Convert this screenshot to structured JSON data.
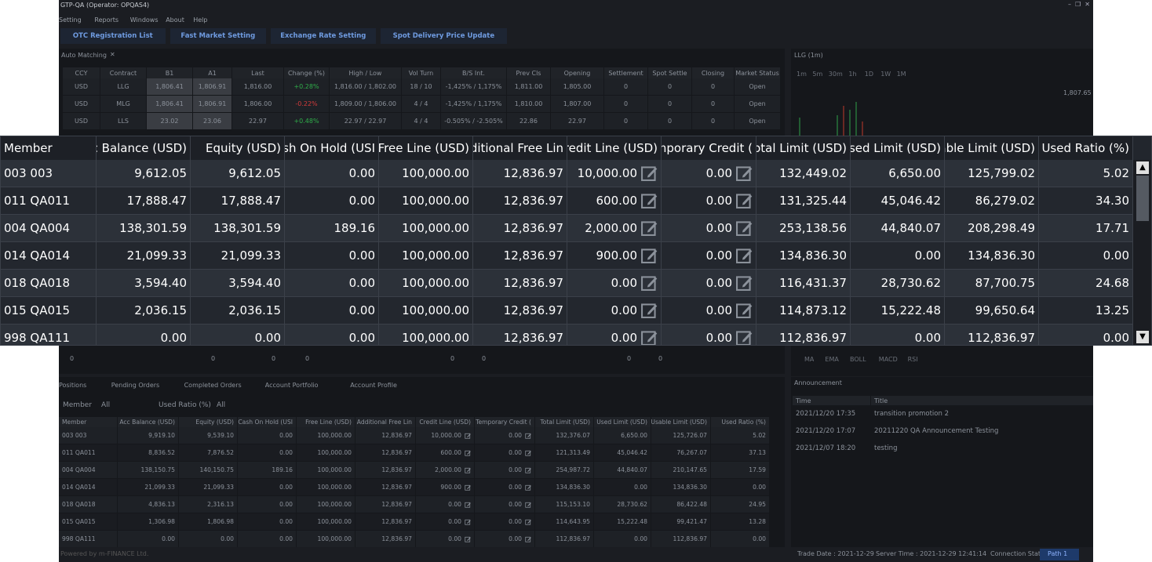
{
  "window": {
    "title": "GTP-QA (Operator: OPQAS4)",
    "menu": [
      "Setting",
      "Reports",
      "Windows",
      "About",
      "Help"
    ],
    "toolbar": [
      "OTC Registration List",
      "Fast Market Setting",
      "Exchange Rate Setting",
      "Spot Delivery Price Update"
    ]
  },
  "auto_matching": {
    "tab": "Auto Matching",
    "headers": [
      "CCY",
      "Contract",
      "B1",
      "A1",
      "Last",
      "Change (%)",
      "High / Low",
      "Vol Turn",
      "B/S Int.",
      "Prev Cls",
      "Opening",
      "Settlement",
      "Spot Settle",
      "Closing",
      "Market Status"
    ],
    "rows": [
      [
        "USD",
        "LLG",
        "1,806.41",
        "1,806.91",
        "1,816.00",
        "+0.28%",
        "1,816.00 / 1,802.00",
        "18 / 10",
        "-1,425% / 1,175%",
        "1,811.00",
        "1,805.00",
        "0",
        "0",
        "0",
        "Open"
      ],
      [
        "USD",
        "MLG",
        "1,806.41",
        "1,806.91",
        "1,806.00",
        "-0.22%",
        "1,809.00 / 1,806.00",
        "4 / 4",
        "-1,425% / 1,175%",
        "1,810.00",
        "1,807.00",
        "0",
        "0",
        "0",
        "Open"
      ],
      [
        "USD",
        "LLS",
        "23.02",
        "23.06",
        "22.97",
        "+0.48%",
        "22.97 / 22.97",
        "4 / 4",
        "-0.505% / -2.505%",
        "22.86",
        "22.97",
        "0",
        "0",
        "0",
        "Open"
      ]
    ]
  },
  "chart_panel": {
    "tab": "LLG (1m)",
    "periods": [
      "1m",
      "5m",
      "30m",
      "1h",
      "1D",
      "1W",
      "1M"
    ],
    "price_label": "1,807.65",
    "indicators": [
      "MA",
      "EMA",
      "BOLL",
      "MACD",
      "RSI"
    ]
  },
  "depth_row": [
    "0",
    "0",
    "0",
    "0",
    "0",
    "0",
    "0",
    "0"
  ],
  "bottom_panel": {
    "tabs": [
      "Positions",
      "Pending Orders",
      "Completed Orders",
      "Account Portfolio",
      "Account Profile"
    ],
    "filters": {
      "member_label": "Member",
      "member_value": "All",
      "ratio_label": "Used Ratio (%)",
      "ratio_value": "All"
    },
    "headers": [
      "Member",
      "Acc Balance (USD)",
      "Equity (USD)",
      "Cash On Hold (USI",
      "Free Line (USD)",
      "Additional Free Lin",
      "Credit Line (USD)",
      "Temporary Credit (",
      "Total Limit (USD)",
      "Used Limit (USD)",
      "Usable Limit (USD)",
      "Used Ratio (%)"
    ],
    "rows": [
      [
        "003 003",
        "9,919.10",
        "9,539.10",
        "0.00",
        "100,000.00",
        "12,836.97",
        "10,000.00",
        "0.00",
        "132,376.07",
        "6,650.00",
        "125,726.07",
        "5.02"
      ],
      [
        "011 QA011",
        "8,836.52",
        "7,876.52",
        "0.00",
        "100,000.00",
        "12,836.97",
        "600.00",
        "0.00",
        "121,313.49",
        "45,046.42",
        "76,267.07",
        "37.13"
      ],
      [
        "004 QA004",
        "138,150.75",
        "140,150.75",
        "189.16",
        "100,000.00",
        "12,836.97",
        "2,000.00",
        "0.00",
        "254,987.72",
        "44,840.07",
        "210,147.65",
        "17.59"
      ],
      [
        "014 QA014",
        "21,099.33",
        "21,099.33",
        "0.00",
        "100,000.00",
        "12,836.97",
        "900.00",
        "0.00",
        "134,836.30",
        "0.00",
        "134,836.30",
        "0.00"
      ],
      [
        "018 QA018",
        "4,836.13",
        "2,316.13",
        "0.00",
        "100,000.00",
        "12,836.97",
        "0.00",
        "0.00",
        "115,153.10",
        "28,730.62",
        "86,422.48",
        "24.95"
      ],
      [
        "015 QA015",
        "1,306.98",
        "1,806.98",
        "0.00",
        "100,000.00",
        "12,836.97",
        "0.00",
        "0.00",
        "114,643.95",
        "15,222.48",
        "99,421.47",
        "13.28"
      ],
      [
        "998 QA111",
        "0.00",
        "0.00",
        "0.00",
        "100,000.00",
        "12,836.97",
        "0.00",
        "0.00",
        "112,836.97",
        "0.00",
        "112,836.97",
        "0.00"
      ]
    ]
  },
  "announcement": {
    "tab": "Announcement",
    "headers": [
      "Time",
      "Title"
    ],
    "rows": [
      [
        "2021/12/20 17:35",
        "transition  promotion 2"
      ],
      [
        "2021/12/20 17:07",
        "20211220 QA Announcement Testing"
      ],
      [
        "2021/12/07 18:20",
        "testing"
      ]
    ]
  },
  "status_bar": {
    "powered": "Powered by m-FINANCE Ltd.",
    "trade_date": "Trade Date : 2021-12-29",
    "server_time": "Server Time : 2021-12-29 12:41:14",
    "connection": "Connection Status",
    "path": "Path 1"
  },
  "zoom_table": {
    "headers": [
      "Member",
      "Acc Balance (USD)",
      "Equity (USD)",
      "Cash On Hold (USI",
      "Free Line (USD)",
      "Additional Free Lin",
      "Credit Line (USD)",
      "Temporary Credit (",
      "Total Limit (USD)",
      "Used Limit (USD)",
      "Usable Limit (USD)",
      "Used Ratio (%)"
    ],
    "rows": [
      [
        "003 003",
        "9,612.05",
        "9,612.05",
        "0.00",
        "100,000.00",
        "12,836.97",
        "10,000.00",
        "0.00",
        "132,449.02",
        "6,650.00",
        "125,799.02",
        "5.02"
      ],
      [
        "011 QA011",
        "17,888.47",
        "17,888.47",
        "0.00",
        "100,000.00",
        "12,836.97",
        "600.00",
        "0.00",
        "131,325.44",
        "45,046.42",
        "86,279.02",
        "34.30"
      ],
      [
        "004 QA004",
        "138,301.59",
        "138,301.59",
        "189.16",
        "100,000.00",
        "12,836.97",
        "2,000.00",
        "0.00",
        "253,138.56",
        "44,840.07",
        "208,298.49",
        "17.71"
      ],
      [
        "014 QA014",
        "21,099.33",
        "21,099.33",
        "0.00",
        "100,000.00",
        "12,836.97",
        "900.00",
        "0.00",
        "134,836.30",
        "0.00",
        "134,836.30",
        "0.00"
      ],
      [
        "018 QA018",
        "3,594.40",
        "3,594.40",
        "0.00",
        "100,000.00",
        "12,836.97",
        "0.00",
        "0.00",
        "116,431.37",
        "28,730.62",
        "87,700.75",
        "24.68"
      ],
      [
        "015 QA015",
        "2,036.15",
        "2,036.15",
        "0.00",
        "100,000.00",
        "12,836.97",
        "0.00",
        "0.00",
        "114,873.12",
        "15,222.48",
        "99,650.64",
        "13.25"
      ],
      [
        "998 QA111",
        "0.00",
        "0.00",
        "0.00",
        "100,000.00",
        "12,836.97",
        "0.00",
        "0.00",
        "112,836.97",
        "0.00",
        "112,836.97",
        "0.00"
      ]
    ]
  }
}
